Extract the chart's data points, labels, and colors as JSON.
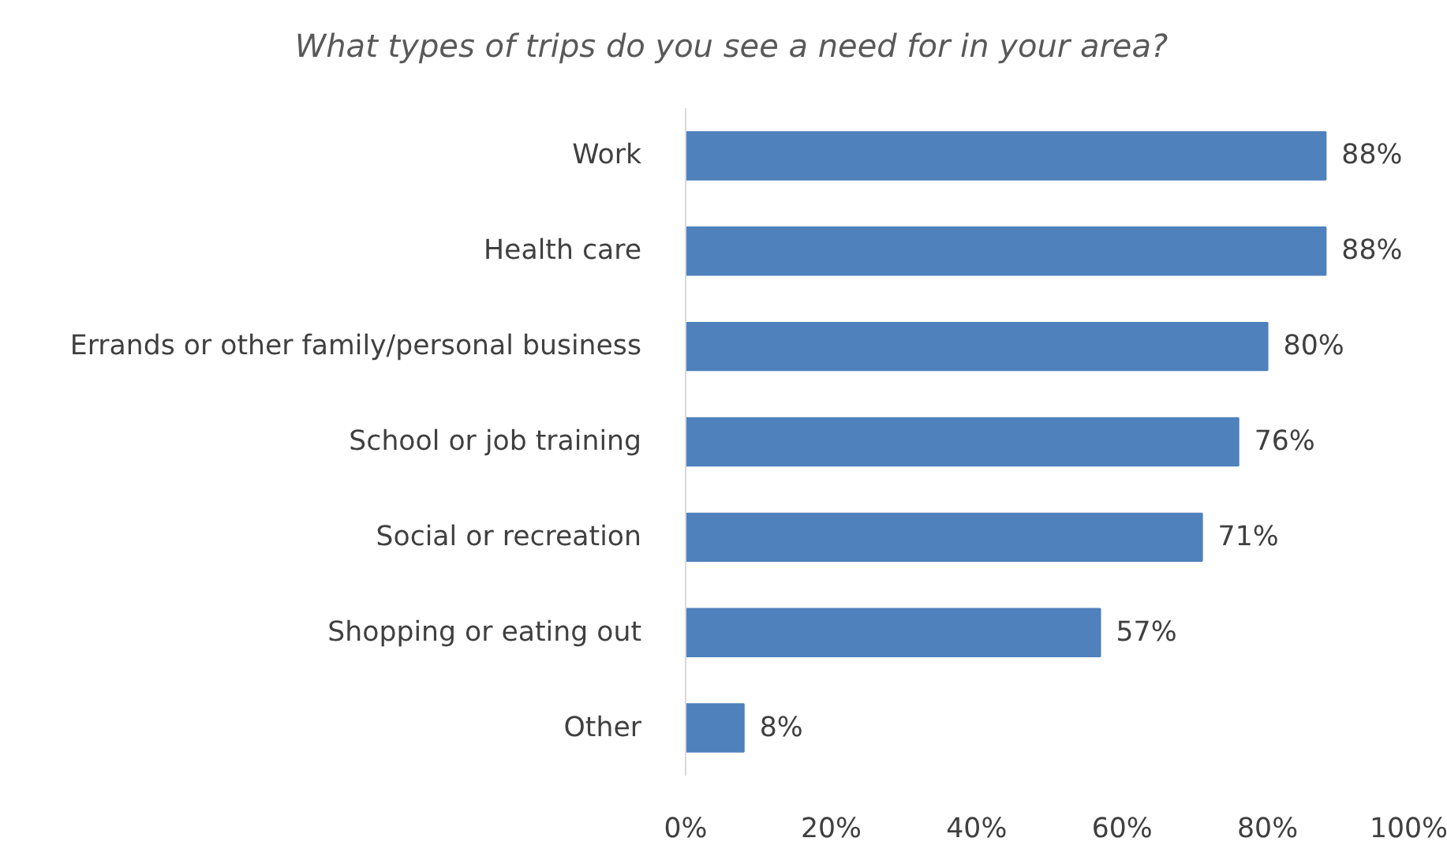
{
  "chart_data": {
    "type": "bar",
    "orientation": "horizontal",
    "title": "What types of trips do you see a need for in your area?",
    "categories": [
      "Work",
      "Health care",
      "Errands or other family/personal business",
      "School or job training",
      "Social or recreation",
      "Shopping or eating out",
      "Other"
    ],
    "values": [
      88,
      88,
      80,
      76,
      71,
      57,
      8
    ],
    "value_labels": [
      "88%",
      "88%",
      "80%",
      "76%",
      "71%",
      "57%",
      "8%"
    ],
    "color": "#4f81bd",
    "xlim": [
      0,
      100
    ],
    "xticks": [
      {
        "value": 0,
        "label": "0%"
      },
      {
        "value": 20,
        "label": "20%"
      },
      {
        "value": 40,
        "label": "40%"
      },
      {
        "value": 60,
        "label": "60%"
      },
      {
        "value": 80,
        "label": "80%"
      },
      {
        "value": 100,
        "label": "100%"
      }
    ],
    "grid": false
  }
}
